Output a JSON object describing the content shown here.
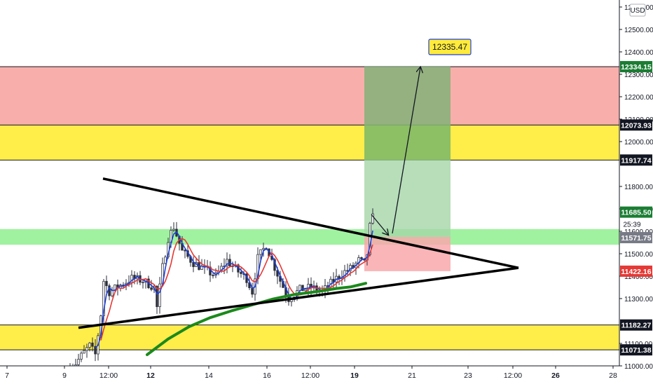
{
  "chart_data": {
    "type": "line",
    "currency": "USD",
    "y_axis": {
      "ticks": [
        12600,
        12500,
        12400,
        12300,
        12200,
        12100,
        12000,
        11800,
        11700,
        11600,
        11500,
        11400,
        11300,
        11100,
        11000
      ],
      "tick_labels": [
        "12600.00",
        "12500.00",
        "12400.00",
        "12300.00",
        "12200.00",
        "12100.00",
        "12000.00",
        "11800.00",
        "11700.00",
        "11600.00",
        "11500.00",
        "11400.00",
        "11300.00",
        "11100.00",
        "11000.00"
      ],
      "ylim": [
        10985,
        12640
      ]
    },
    "x_axis": {
      "tick_labels": [
        "7",
        "9",
        "12:00",
        "12",
        "14",
        "16",
        "12:00",
        "19",
        "21",
        "23",
        "12:00",
        "26",
        "28"
      ]
    },
    "price_labels": [
      {
        "value": 12334.15,
        "text": "12334.15",
        "color": "#1b7d33"
      },
      {
        "value": 12073.93,
        "text": "12073.93",
        "color": "#131722"
      },
      {
        "value": 11917.74,
        "text": "11917.74",
        "color": "#131722"
      },
      {
        "value": 11685.5,
        "text": "11685.50",
        "color": "#1b7d33"
      },
      {
        "value": 11571.75,
        "text": "11571.75",
        "color": "#787b86"
      },
      {
        "value": 11422.16,
        "text": "11422.16",
        "color": "#e53935"
      },
      {
        "value": 11182.27,
        "text": "11182.27",
        "color": "#131722"
      },
      {
        "value": 11071.38,
        "text": "11071.38",
        "color": "#131722"
      }
    ],
    "countdown_label": "25:39",
    "target_callout": "12335.47",
    "zones": [
      {
        "name": "resistance-red",
        "low": 12073.93,
        "high": 12334.15,
        "color": "#f7a7a4"
      },
      {
        "name": "resistance-yellow",
        "low": 11917.74,
        "high": 12073.93,
        "color": "#ffeb3b"
      },
      {
        "name": "support-green",
        "low": 11540,
        "high": 11610,
        "color": "#8ff08f"
      },
      {
        "name": "support-yellow",
        "low": 11071.38,
        "high": 11182.27,
        "color": "#ffeb3b"
      }
    ],
    "trade_box": {
      "entry": 11575,
      "target": 12334.15,
      "stop": 11422.16,
      "profit_color": "#a5d6a7",
      "loss_color": "#f8a8ac"
    },
    "triangle": {
      "upper": [
        [
          "start",
          11835
        ],
        [
          "apex",
          11437
        ]
      ],
      "lower": [
        [
          "start",
          11170
        ],
        [
          "apex",
          11437
        ]
      ]
    },
    "series": [
      {
        "color": "#1e3fd8",
        "style": "fast-ma"
      },
      {
        "color": "#e53935",
        "style": "mid-ma"
      },
      {
        "color": "#1b8a1b",
        "style": "slow-ma"
      },
      {
        "color": "#000000",
        "style": "candles"
      }
    ]
  },
  "colors": {
    "axis_text": "#131722",
    "grid": "#e0e3eb",
    "callout_fill": "#ffeb3b",
    "callout_border": "#1e3fd8"
  }
}
